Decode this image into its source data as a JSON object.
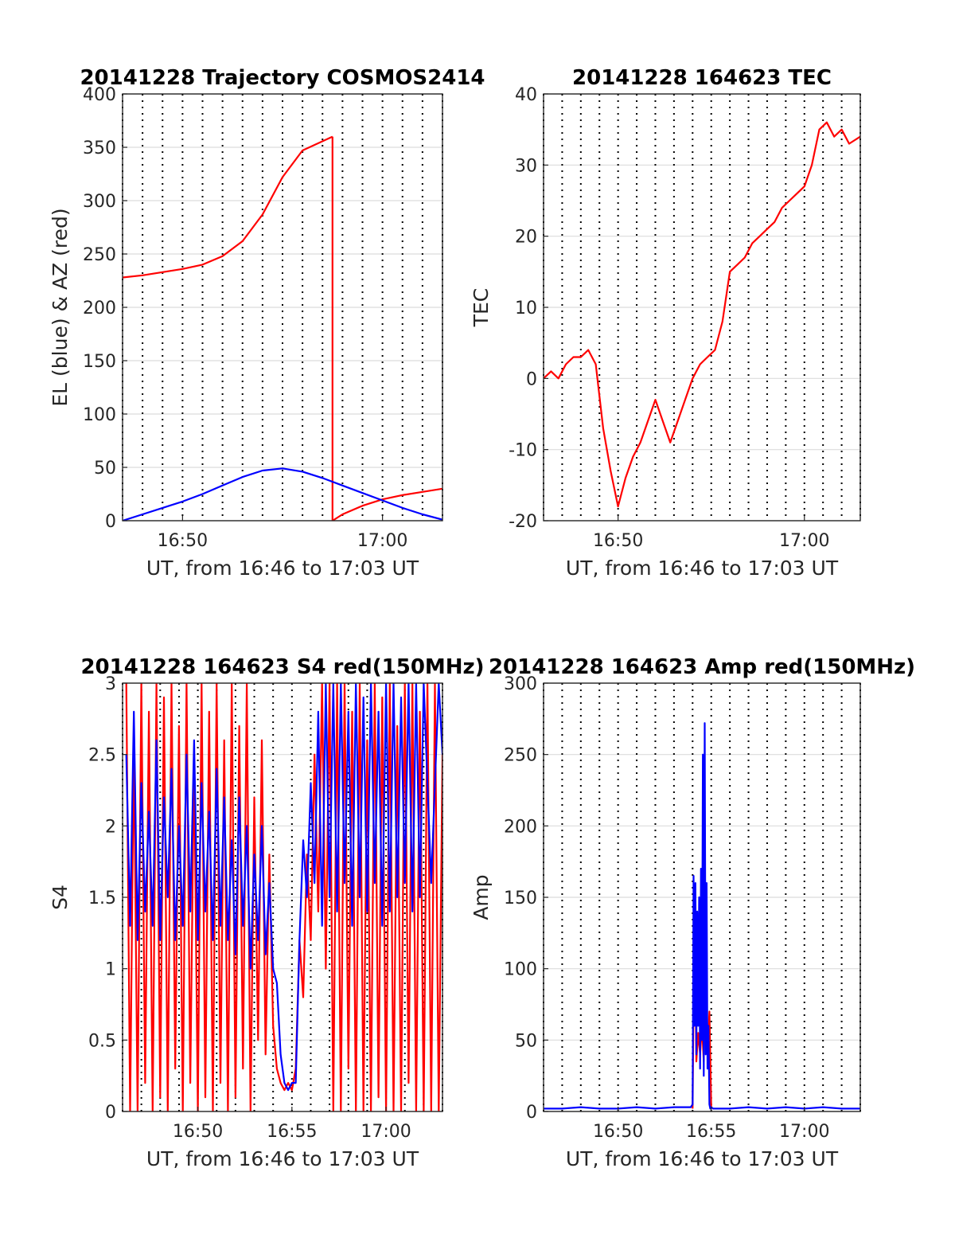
{
  "chart_data": [
    {
      "id": "traj",
      "type": "line",
      "title": "20141228 Trajectory COSMOS2414",
      "xlabel": "UT, from 16:46 to 17:03 UT",
      "ylabel": "EL (blue) & AZ (red)",
      "xlim": [
        "16:47",
        "17:03"
      ],
      "ylim": [
        0,
        400
      ],
      "xticks": [
        "16:50",
        "17:00"
      ],
      "yticks": [
        0,
        50,
        100,
        150,
        200,
        250,
        300,
        350,
        400
      ],
      "grid": true,
      "series": [
        {
          "color": "#ff0000",
          "x": [
            "16:47",
            "16:48",
            "16:49",
            "16:50",
            "16:51",
            "16:52",
            "16:53",
            "16:54",
            "16:55",
            "16:56",
            "16:57.5"
          ],
          "y": [
            228,
            230,
            233,
            236,
            240,
            248,
            262,
            287,
            322,
            347,
            360
          ]
        },
        {
          "color": "#ff0000",
          "x": [
            "16:57.5",
            "16:57.5"
          ],
          "y": [
            360,
            0
          ]
        },
        {
          "color": "#ff0000",
          "x": [
            "16:57.5",
            "16:58",
            "16:59",
            "17:00",
            "17:01",
            "17:02",
            "17:03"
          ],
          "y": [
            0,
            6,
            14,
            20,
            24,
            27,
            30
          ]
        },
        {
          "color": "#0000ff",
          "x": [
            "16:47",
            "16:48",
            "16:49",
            "16:50",
            "16:51",
            "16:52",
            "16:53",
            "16:54",
            "16:55",
            "16:56",
            "16:57",
            "16:58",
            "16:59",
            "17:00",
            "17:01",
            "17:02",
            "17:03"
          ],
          "y": [
            0,
            6,
            12,
            18,
            25,
            33,
            41,
            47,
            49,
            46,
            40,
            33,
            26,
            19,
            12,
            6,
            1
          ]
        }
      ]
    },
    {
      "id": "tec",
      "type": "line",
      "title": "20141228 164623 TEC",
      "xlabel": "UT, from 16:46 to 17:03 UT",
      "ylabel": "TEC",
      "xlim": [
        "16:46",
        "17:03"
      ],
      "ylim": [
        -20,
        40
      ],
      "xticks": [
        "16:50",
        "17:00"
      ],
      "yticks": [
        -20,
        -10,
        0,
        10,
        20,
        30,
        40
      ],
      "grid": true,
      "series": [
        {
          "color": "#ff0000",
          "x": [
            "16:46.0",
            "16:46.4",
            "16:46.8",
            "16:47.2",
            "16:47.6",
            "16:48.0",
            "16:48.4",
            "16:48.8",
            "16:49.2",
            "16:49.6",
            "16:50.0",
            "16:50.4",
            "16:50.8",
            "16:51.2",
            "16:51.6",
            "16:52.0",
            "16:52.4",
            "16:52.8",
            "16:53.2",
            "16:53.6",
            "16:54.0",
            "16:54.4",
            "16:54.8",
            "16:55.2",
            "16:55.6",
            "16:56.0",
            "16:56.4",
            "16:56.8",
            "16:57.2",
            "16:57.6",
            "16:58.0",
            "16:58.4",
            "16:58.8",
            "16:59.2",
            "16:59.6",
            "17:00.0",
            "17:00.4",
            "17:00.8",
            "17:01.2",
            "17:01.6",
            "17:02.0",
            "17:02.4",
            "17:03.0"
          ],
          "y": [
            0,
            1,
            0,
            2,
            3,
            3,
            4,
            2,
            -7,
            -13,
            -18,
            -14,
            -11,
            -9,
            -6,
            -3,
            -6,
            -9,
            -6,
            -3,
            0,
            2,
            3,
            4,
            8,
            15,
            16,
            17,
            19,
            20,
            21,
            22,
            24,
            25,
            26,
            27,
            30,
            35,
            36,
            34,
            35,
            33,
            34
          ]
        }
      ]
    },
    {
      "id": "s4",
      "type": "line",
      "title": "20141228 164623 S4 red(150MHz)",
      "xlabel": "UT, from 16:46 to 17:03 UT",
      "ylabel": "S4",
      "xlim": [
        "16:46",
        "17:03"
      ],
      "ylim": [
        0,
        3
      ],
      "xticks": [
        "16:50",
        "16:55",
        "17:00"
      ],
      "yticks": [
        0,
        0.5,
        1,
        1.5,
        2,
        2.5,
        3
      ],
      "grid": true,
      "series": [
        {
          "color": "#ff0000",
          "x": [
            "16:46.2",
            "16:46.4",
            "16:46.6",
            "16:46.8",
            "16:47.0",
            "16:47.2",
            "16:47.4",
            "16:47.6",
            "16:47.8",
            "16:48.0",
            "16:48.2",
            "16:48.4",
            "16:48.6",
            "16:48.8",
            "16:49.0",
            "16:49.2",
            "16:49.4",
            "16:49.6",
            "16:49.8",
            "16:50.0",
            "16:50.2",
            "16:50.4",
            "16:50.6",
            "16:50.8",
            "16:51.0",
            "16:51.2",
            "16:51.4",
            "16:51.6",
            "16:51.8",
            "16:52.0",
            "16:52.2",
            "16:52.4",
            "16:52.6",
            "16:52.8",
            "16:53.0",
            "16:53.2",
            "16:53.4",
            "16:53.6",
            "16:53.8",
            "16:54.0",
            "16:54.2",
            "16:54.4",
            "16:54.6",
            "16:54.8",
            "16:55.0",
            "16:55.2",
            "16:55.4",
            "16:55.6",
            "16:55.8",
            "16:56.0",
            "16:56.2",
            "16:56.4",
            "16:56.6",
            "16:56.8",
            "16:57.0",
            "16:57.2",
            "16:57.4",
            "16:57.6",
            "16:57.8",
            "16:58.0",
            "16:58.2",
            "16:58.4",
            "16:58.6",
            "16:58.8",
            "16:59.0",
            "16:59.2",
            "16:59.4",
            "16:59.6",
            "16:59.8",
            "17:00.0",
            "17:00.2",
            "17:00.4",
            "17:00.6",
            "17:00.8",
            "17:01.0",
            "17:01.2",
            "17:01.4",
            "17:01.6",
            "17:01.8",
            "17:02.0",
            "17:02.2",
            "17:02.4",
            "17:02.6",
            "17:02.8",
            "17:03.0"
          ],
          "y": [
            3,
            0,
            2.6,
            0,
            3,
            0.2,
            2.8,
            0,
            3,
            0.1,
            2.9,
            0,
            3,
            0.3,
            2.7,
            0,
            3,
            0.2,
            2.5,
            0,
            3,
            0.1,
            2.8,
            0,
            3,
            0.2,
            2.6,
            0,
            3,
            0.1,
            2.7,
            0.3,
            3,
            0,
            2.2,
            0.5,
            2.6,
            0.4,
            1.8,
            0.6,
            0.3,
            0.2,
            0.15,
            0.2,
            0.15,
            0.3,
            1.2,
            0.8,
            1.8,
            1.2,
            2.5,
            1.4,
            3,
            1.0,
            3,
            0,
            3,
            0,
            3,
            0.3,
            2.8,
            0,
            3,
            0,
            2.6,
            0,
            3,
            0.1,
            2.9,
            0,
            3,
            0,
            2.7,
            0,
            3,
            0.2,
            3,
            0,
            2.8,
            0,
            3,
            0,
            3,
            0,
            2.5
          ]
        },
        {
          "color": "#0000ff",
          "x": [
            "16:46.2",
            "16:46.4",
            "16:46.6",
            "16:46.8",
            "16:47.0",
            "16:47.2",
            "16:47.4",
            "16:47.6",
            "16:47.8",
            "16:48.0",
            "16:48.2",
            "16:48.4",
            "16:48.6",
            "16:48.8",
            "16:49.0",
            "16:49.2",
            "16:49.4",
            "16:49.6",
            "16:49.8",
            "16:50.0",
            "16:50.2",
            "16:50.4",
            "16:50.6",
            "16:50.8",
            "16:51.0",
            "16:51.2",
            "16:51.4",
            "16:51.6",
            "16:51.8",
            "16:52.0",
            "16:52.2",
            "16:52.4",
            "16:52.6",
            "16:52.8",
            "16:53.0",
            "16:53.2",
            "16:53.4",
            "16:53.6",
            "16:53.8",
            "16:54.0",
            "16:54.2",
            "16:54.4",
            "16:54.6",
            "16:54.8",
            "16:55.0",
            "16:55.2",
            "16:55.4",
            "16:55.6",
            "16:55.8",
            "16:56.0",
            "16:56.2",
            "16:56.4",
            "16:56.6",
            "16:56.8",
            "16:57.0",
            "16:57.2",
            "16:57.4",
            "16:57.6",
            "16:57.8",
            "16:58.0",
            "16:58.2",
            "16:58.4",
            "16:58.6",
            "16:58.8",
            "16:59.0",
            "16:59.2",
            "16:59.4",
            "16:59.6",
            "16:59.8",
            "17:00.0",
            "17:00.2",
            "17:00.4",
            "17:00.6",
            "17:00.8",
            "17:01.0",
            "17:01.2",
            "17:01.4",
            "17:01.6",
            "17:01.8",
            "17:02.0",
            "17:02.4",
            "17:02.8",
            "17:03.0"
          ],
          "y": [
            2.5,
            1.3,
            2.8,
            1.2,
            2.3,
            1.4,
            2.1,
            1.3,
            2.6,
            1.2,
            2.2,
            1.5,
            2.4,
            1.2,
            2.0,
            1.3,
            2.5,
            1.4,
            2.6,
            1.2,
            2.3,
            1.4,
            2.1,
            1.2,
            2.4,
            1.3,
            2.2,
            1.2,
            1.9,
            1.1,
            2.2,
            1.3,
            2.0,
            1.0,
            1.8,
            1.2,
            2.0,
            1.1,
            1.6,
            1.0,
            0.9,
            0.4,
            0.2,
            0.15,
            0.2,
            0.2,
            1.2,
            1.9,
            1.5,
            2.3,
            1.6,
            2.8,
            1.3,
            3,
            1.5,
            3,
            1.4,
            3,
            1.6,
            2.8,
            1.3,
            3,
            1.5,
            2.9,
            1.4,
            3,
            1.6,
            2.8,
            1.3,
            3,
            1.4,
            3,
            1.5,
            2.9,
            1.6,
            3,
            1.4,
            3,
            1.5,
            3,
            1.6,
            3,
            2.5
          ]
        }
      ]
    },
    {
      "id": "amp",
      "type": "line",
      "title": "20141228 164623 Amp red(150MHz)",
      "xlabel": "UT, from 16:46 to 17:03 UT",
      "ylabel": "Amp",
      "xlim": [
        "16:46",
        "17:03"
      ],
      "ylim": [
        0,
        300
      ],
      "xticks": [
        "16:50",
        "16:55",
        "17:00"
      ],
      "yticks": [
        0,
        50,
        100,
        150,
        200,
        250,
        300
      ],
      "grid": true,
      "series": [
        {
          "color": "#ff0000",
          "x": [
            "16:54.0",
            "16:54.1",
            "16:54.2",
            "16:54.3",
            "16:54.4",
            "16:54.5",
            "16:54.6",
            "16:54.7",
            "16:54.8",
            "16:54.9",
            "16:55.0"
          ],
          "y": [
            2,
            150,
            35,
            55,
            40,
            60,
            35,
            120,
            40,
            70,
            3
          ]
        },
        {
          "color": "#0000ff",
          "x": [
            "16:46.0",
            "16:47.0",
            "16:48.0",
            "16:49.0",
            "16:50.0",
            "16:51.0",
            "16:52.0",
            "16:53.0",
            "16:53.9",
            "16:54.0",
            "16:54.05",
            "16:54.1",
            "16:54.15",
            "16:54.2",
            "16:54.25",
            "16:54.3",
            "16:54.35",
            "16:54.4",
            "16:54.45",
            "16:54.5",
            "16:54.55",
            "16:54.6",
            "16:54.65",
            "16:54.7",
            "16:54.75",
            "16:54.8",
            "16:54.85",
            "16:54.9",
            "16:54.95",
            "16:55.0",
            "16:55.1",
            "16:56.0",
            "16:57.0",
            "16:58.0",
            "16:59.0",
            "17:00.0",
            "17:01.0",
            "17:02.0",
            "17:03.0"
          ],
          "y": [
            2,
            2,
            3,
            2,
            2,
            3,
            2,
            3,
            3,
            5,
            165,
            60,
            160,
            40,
            140,
            60,
            150,
            30,
            170,
            50,
            250,
            25,
            272,
            40,
            160,
            30,
            60,
            5,
            2,
            3,
            2,
            2,
            3,
            2,
            3,
            2,
            3,
            2,
            2
          ]
        }
      ]
    }
  ]
}
